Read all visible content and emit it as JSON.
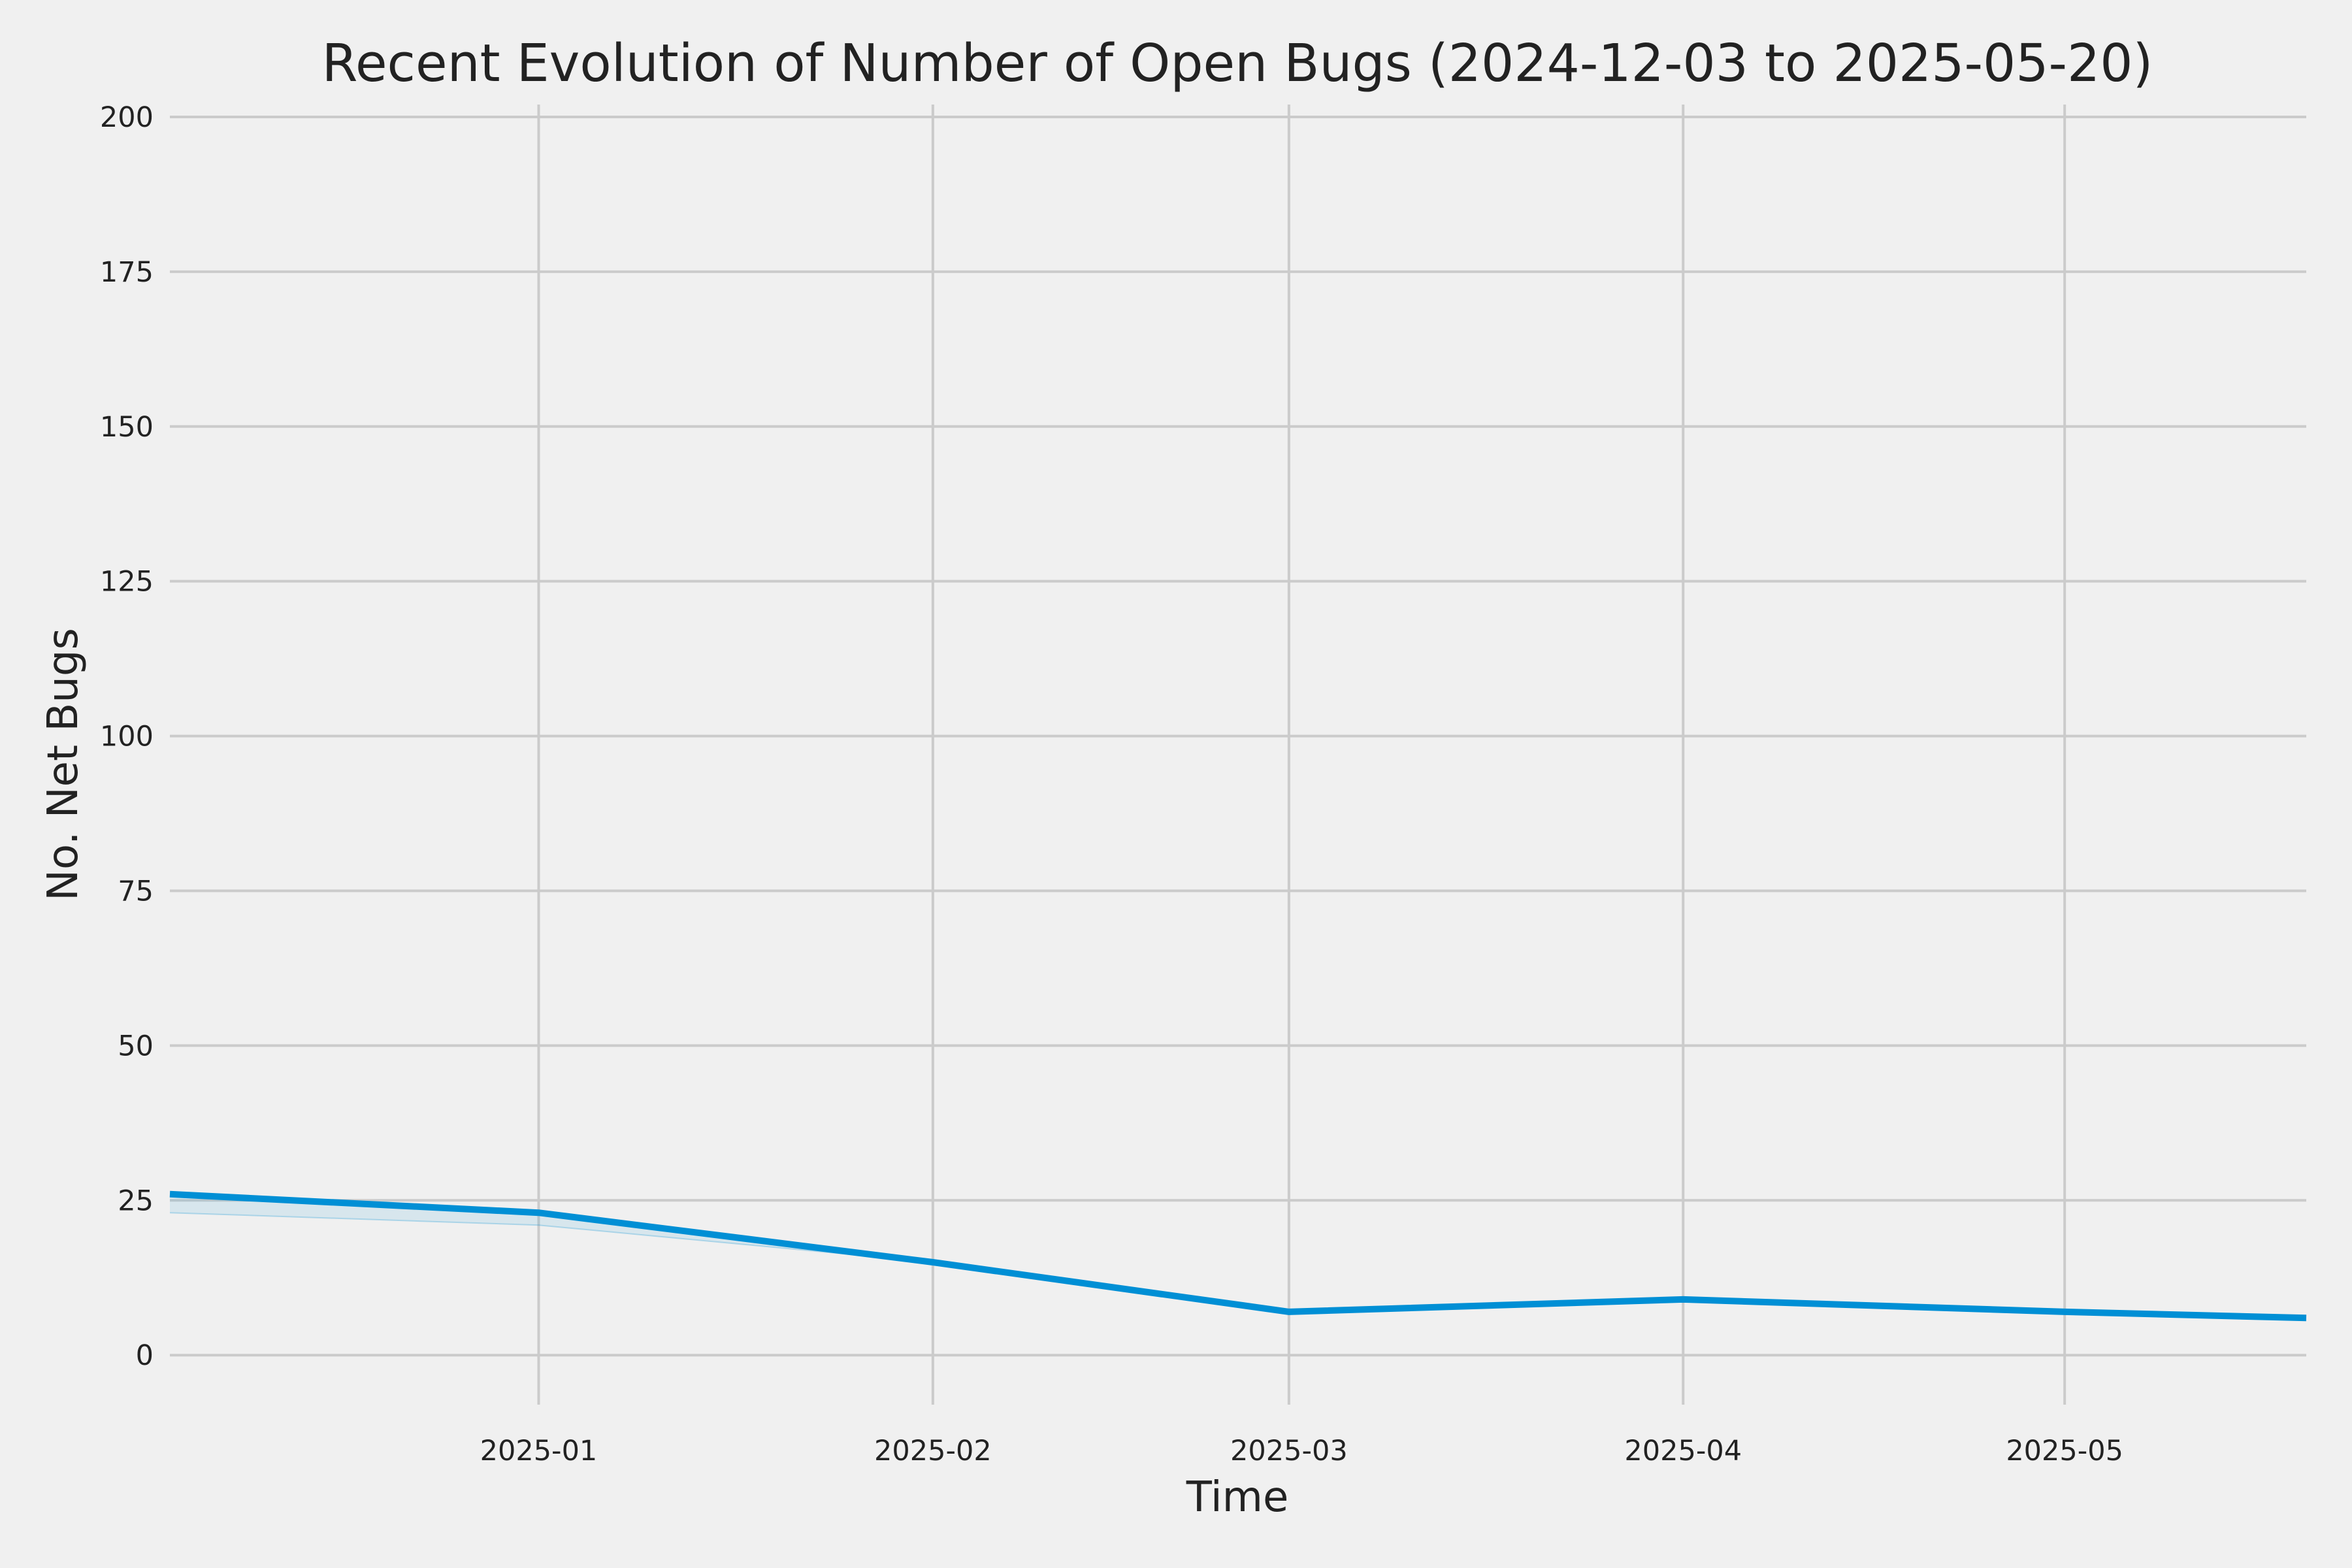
{
  "chart_data": {
    "type": "line",
    "title": "Recent Evolution of Number of Open Bugs (2024-12-03 to 2025-05-20)",
    "xlabel": "Time",
    "ylabel": "No. Net Bugs",
    "xlim": [
      "2024-12-03",
      "2025-05-20"
    ],
    "ylim": [
      -8,
      202
    ],
    "x_ticks": [
      "2025-01-01",
      "2025-02-01",
      "2025-03-01",
      "2025-04-01",
      "2025-05-01"
    ],
    "x_tick_labels": [
      "2025-01",
      "2025-02",
      "2025-03",
      "2025-04",
      "2025-05"
    ],
    "y_ticks": [
      0,
      25,
      50,
      75,
      100,
      125,
      150,
      175,
      200
    ],
    "grid": true,
    "legend": "none",
    "series": [
      {
        "x": [
          "2024-12-03",
          "2025-01-01",
          "2025-02-01",
          "2025-03-01",
          "2025-04-01",
          "2025-05-01",
          "2025-05-20"
        ],
        "values": [
          26,
          23,
          15,
          7,
          9,
          7,
          6
        ],
        "color": "#008fd5"
      }
    ],
    "band": {
      "x": [
        "2024-12-03",
        "2025-01-01",
        "2025-02-01",
        "2025-03-01",
        "2025-04-01",
        "2025-05-01",
        "2025-05-20"
      ],
      "upper": [
        26,
        23,
        15,
        7,
        9,
        7,
        6
      ],
      "lower": [
        23,
        21,
        15,
        7,
        9,
        7,
        6
      ],
      "color": "#008fd5"
    },
    "colors": {
      "background": "#f0f0f0",
      "grid": "#cbcbcb",
      "text": "#222222"
    }
  }
}
